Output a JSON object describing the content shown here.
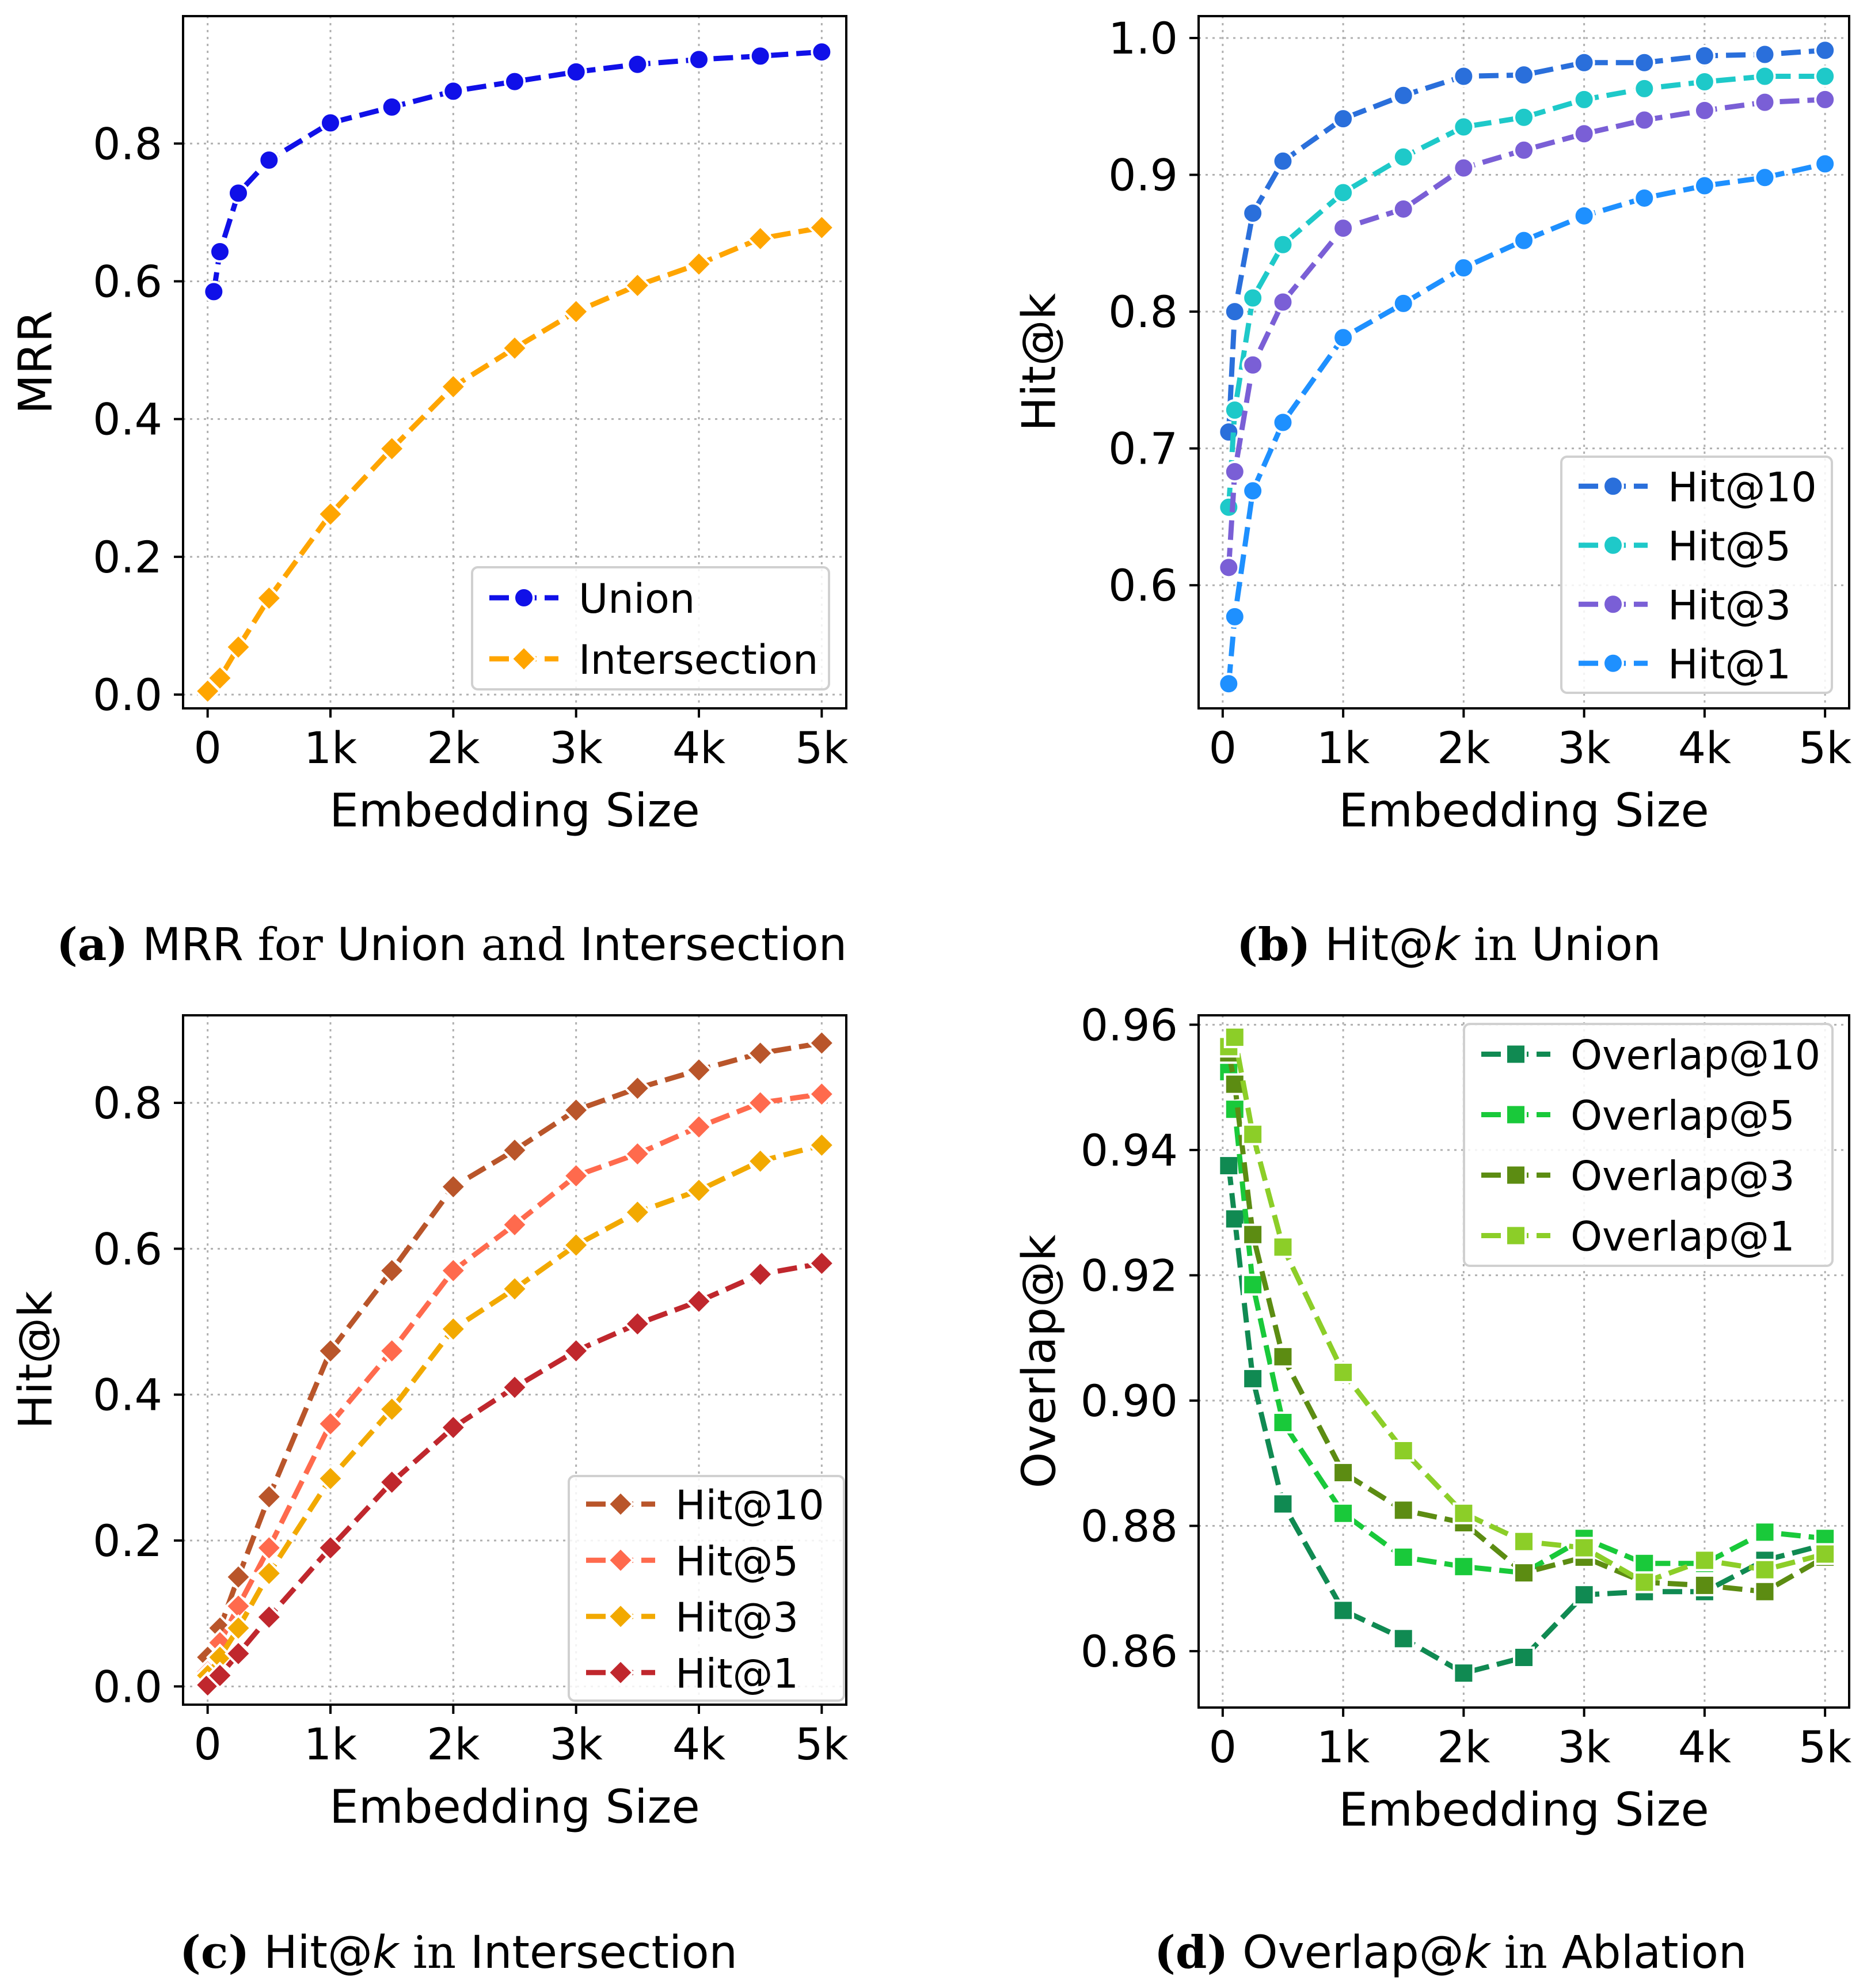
{
  "colors": {
    "union": "#1010e8",
    "intersection": "#ffa500",
    "b_hit10": "#2a6fdb",
    "b_hit5": "#1ec9c9",
    "b_hit3": "#7a5fd6",
    "b_hit1": "#1e90ff",
    "c_hit10": "#b9552a",
    "c_hit5": "#ff6a4d",
    "c_hit3": "#f2a900",
    "c_hit1": "#c0272d",
    "d_overlap10": "#108a52",
    "d_overlap5": "#19c93a",
    "d_overlap3": "#5c8c12",
    "d_overlap1": "#8cce28"
  },
  "captions": {
    "a": {
      "label": "(a)",
      "metric": "MRR",
      "w1": "for",
      "s1": "Union",
      "w2": "and",
      "s2": "Intersection"
    },
    "b": {
      "label": "(b)",
      "metric": "Hit@",
      "k": "k",
      "w1": "in",
      "s1": "Union"
    },
    "c": {
      "label": "(c)",
      "metric": "Hit@",
      "k": "k",
      "w1": "in",
      "s1": "Intersection"
    },
    "d": {
      "label": "(d)",
      "metric": "Overlap@",
      "k": "k",
      "w1": "in",
      "s1": "Ablation"
    }
  },
  "chart_data": [
    {
      "id": "a",
      "type": "line",
      "xlabel": "Embedding Size",
      "ylabel": "MRR",
      "xlim": [
        -200,
        5200
      ],
      "ylim": [
        -0.02,
        0.985
      ],
      "xticks": [
        0,
        1000,
        2000,
        3000,
        4000,
        5000
      ],
      "xtick_labels": [
        "0",
        "1k",
        "2k",
        "3k",
        "4k",
        "5k"
      ],
      "yticks": [
        0.0,
        0.2,
        0.4,
        0.6,
        0.8
      ],
      "ytick_labels": [
        "0.0",
        "0.2",
        "0.4",
        "0.6",
        "0.8"
      ],
      "grid": true,
      "legend_location": "lower-right",
      "series": [
        {
          "name": "Union",
          "color_key": "union",
          "marker": "circle",
          "x": [
            50,
            100,
            250,
            500,
            1000,
            1500,
            2000,
            2500,
            3000,
            3500,
            4000,
            4500,
            5000
          ],
          "y": [
            0.585,
            0.643,
            0.728,
            0.776,
            0.83,
            0.853,
            0.876,
            0.89,
            0.904,
            0.915,
            0.922,
            0.927,
            0.933
          ]
        },
        {
          "name": "Intersection",
          "color_key": "intersection",
          "marker": "diamond",
          "x": [
            0,
            100,
            250,
            500,
            1000,
            1500,
            2000,
            2500,
            3000,
            3500,
            4000,
            4500,
            5000
          ],
          "y": [
            0.005,
            0.024,
            0.069,
            0.14,
            0.262,
            0.357,
            0.447,
            0.503,
            0.556,
            0.594,
            0.625,
            0.662,
            0.678
          ]
        }
      ]
    },
    {
      "id": "b",
      "type": "line",
      "xlabel": "Embedding Size",
      "ylabel": "Hit@k",
      "xlim": [
        -200,
        5200
      ],
      "ylim": [
        0.51,
        1.016
      ],
      "xticks": [
        0,
        1000,
        2000,
        3000,
        4000,
        5000
      ],
      "xtick_labels": [
        "0",
        "1k",
        "2k",
        "3k",
        "4k",
        "5k"
      ],
      "yticks": [
        0.6,
        0.7,
        0.8,
        0.9,
        1.0
      ],
      "ytick_labels": [
        "0.6",
        "0.7",
        "0.8",
        "0.9",
        "1.0"
      ],
      "grid": true,
      "legend_location": "lower-right",
      "series": [
        {
          "name": "Hit@10",
          "color_key": "b_hit10",
          "marker": "circle",
          "x": [
            50,
            100,
            250,
            500,
            1000,
            1500,
            2000,
            2500,
            3000,
            3500,
            4000,
            4500,
            5000
          ],
          "y": [
            0.712,
            0.8,
            0.872,
            0.91,
            0.941,
            0.958,
            0.972,
            0.973,
            0.982,
            0.982,
            0.987,
            0.988,
            0.991
          ]
        },
        {
          "name": "Hit@5",
          "color_key": "b_hit5",
          "marker": "circle",
          "x": [
            50,
            100,
            250,
            500,
            1000,
            1500,
            2000,
            2500,
            3000,
            3500,
            4000,
            4500,
            5000
          ],
          "y": [
            0.657,
            0.728,
            0.81,
            0.849,
            0.887,
            0.913,
            0.935,
            0.942,
            0.955,
            0.963,
            0.968,
            0.972,
            0.972
          ]
        },
        {
          "name": "Hit@3",
          "color_key": "b_hit3",
          "marker": "circle",
          "x": [
            50,
            100,
            250,
            500,
            1000,
            1500,
            2000,
            2500,
            3000,
            3500,
            4000,
            4500,
            5000
          ],
          "y": [
            0.613,
            0.683,
            0.761,
            0.807,
            0.861,
            0.875,
            0.905,
            0.918,
            0.93,
            0.94,
            0.947,
            0.953,
            0.955
          ]
        },
        {
          "name": "Hit@1",
          "color_key": "b_hit1",
          "marker": "circle",
          "x": [
            50,
            100,
            250,
            500,
            1000,
            1500,
            2000,
            2500,
            3000,
            3500,
            4000,
            4500,
            5000
          ],
          "y": [
            0.528,
            0.577,
            0.669,
            0.719,
            0.781,
            0.806,
            0.832,
            0.852,
            0.87,
            0.883,
            0.892,
            0.898,
            0.908
          ]
        }
      ]
    },
    {
      "id": "c",
      "type": "line",
      "xlabel": "Embedding Size",
      "ylabel": "Hit@k",
      "xlim": [
        -200,
        5200
      ],
      "ylim": [
        -0.025,
        0.92
      ],
      "xticks": [
        0,
        1000,
        2000,
        3000,
        4000,
        5000
      ],
      "xtick_labels": [
        "0",
        "1k",
        "2k",
        "3k",
        "4k",
        "5k"
      ],
      "yticks": [
        0.0,
        0.2,
        0.4,
        0.6,
        0.8
      ],
      "ytick_labels": [
        "0.0",
        "0.2",
        "0.4",
        "0.6",
        "0.8"
      ],
      "grid": true,
      "legend_location": "lower-right",
      "series": [
        {
          "name": "Hit@10",
          "color_key": "c_hit10",
          "marker": "diamond",
          "x": [
            0,
            100,
            250,
            500,
            1000,
            1500,
            2000,
            2500,
            3000,
            3500,
            4000,
            4500,
            5000
          ],
          "y": [
            0.04,
            0.08,
            0.15,
            0.26,
            0.46,
            0.57,
            0.685,
            0.735,
            0.79,
            0.82,
            0.845,
            0.868,
            0.882
          ]
        },
        {
          "name": "Hit@5",
          "color_key": "c_hit5",
          "marker": "diamond",
          "x": [
            0,
            100,
            250,
            500,
            1000,
            1500,
            2000,
            2500,
            3000,
            3500,
            4000,
            4500,
            5000
          ],
          "y": [
            0.02,
            0.06,
            0.11,
            0.19,
            0.36,
            0.46,
            0.57,
            0.633,
            0.7,
            0.73,
            0.767,
            0.8,
            0.812
          ]
        },
        {
          "name": "Hit@3",
          "color_key": "c_hit3",
          "marker": "diamond",
          "x": [
            0,
            100,
            250,
            500,
            1000,
            1500,
            2000,
            2500,
            3000,
            3500,
            4000,
            4500,
            5000
          ],
          "y": [
            0.015,
            0.04,
            0.08,
            0.155,
            0.285,
            0.38,
            0.49,
            0.545,
            0.605,
            0.65,
            0.68,
            0.72,
            0.742
          ]
        },
        {
          "name": "Hit@1",
          "color_key": "c_hit1",
          "marker": "diamond",
          "x": [
            0,
            100,
            250,
            500,
            1000,
            1500,
            2000,
            2500,
            3000,
            3500,
            4000,
            4500,
            5000
          ],
          "y": [
            0.002,
            0.015,
            0.045,
            0.095,
            0.19,
            0.28,
            0.355,
            0.41,
            0.46,
            0.497,
            0.528,
            0.565,
            0.58
          ]
        }
      ]
    },
    {
      "id": "d",
      "type": "line",
      "xlabel": "Embedding Size",
      "ylabel": "Overlap@k",
      "xlim": [
        -200,
        5200
      ],
      "ylim": [
        0.851,
        0.9615
      ],
      "xticks": [
        0,
        1000,
        2000,
        3000,
        4000,
        5000
      ],
      "xtick_labels": [
        "0",
        "1k",
        "2k",
        "3k",
        "4k",
        "5k"
      ],
      "yticks": [
        0.86,
        0.88,
        0.9,
        0.92,
        0.94,
        0.96
      ],
      "ytick_labels": [
        "0.86",
        "0.88",
        "0.90",
        "0.92",
        "0.94",
        "0.96"
      ],
      "grid": true,
      "legend_location": "upper-right",
      "series": [
        {
          "name": "Overlap@10",
          "color_key": "d_overlap10",
          "marker": "square",
          "x": [
            50,
            100,
            250,
            500,
            1000,
            1500,
            2000,
            2500,
            3000,
            3500,
            4000,
            4500,
            5000
          ],
          "y": [
            0.9375,
            0.929,
            0.9035,
            0.8835,
            0.8665,
            0.862,
            0.8565,
            0.859,
            0.869,
            0.8695,
            0.8695,
            0.8745,
            0.877
          ]
        },
        {
          "name": "Overlap@5",
          "color_key": "d_overlap5",
          "marker": "square",
          "x": [
            50,
            100,
            250,
            500,
            1000,
            1500,
            2000,
            2500,
            3000,
            3500,
            4000,
            4500,
            5000
          ],
          "y": [
            0.9525,
            0.9465,
            0.9185,
            0.8965,
            0.882,
            0.875,
            0.8735,
            0.8725,
            0.878,
            0.874,
            0.874,
            0.879,
            0.878
          ]
        },
        {
          "name": "Overlap@3",
          "color_key": "d_overlap3",
          "marker": "square",
          "x": [
            50,
            100,
            250,
            500,
            1000,
            1500,
            2000,
            2500,
            3000,
            3500,
            4000,
            4500,
            5000
          ],
          "y": [
            0.9555,
            0.9505,
            0.9265,
            0.907,
            0.8885,
            0.8825,
            0.8805,
            0.8725,
            0.875,
            0.871,
            0.8705,
            0.8695,
            0.875
          ]
        },
        {
          "name": "Overlap@1",
          "color_key": "d_overlap1",
          "marker": "square",
          "x": [
            50,
            100,
            250,
            500,
            1000,
            1500,
            2000,
            2500,
            3000,
            3500,
            4000,
            4500,
            5000
          ],
          "y": [
            0.9565,
            0.958,
            0.9425,
            0.9245,
            0.9045,
            0.892,
            0.882,
            0.8775,
            0.8765,
            0.871,
            0.8745,
            0.873,
            0.8755
          ]
        }
      ]
    }
  ]
}
